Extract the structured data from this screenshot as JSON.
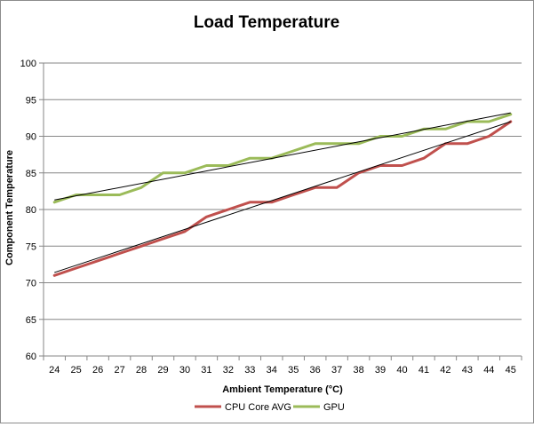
{
  "chart_data": {
    "type": "line",
    "title": "Load Temperature",
    "xlabel": "Ambient Temperature (°C)",
    "ylabel": "Component Temperature",
    "x": [
      24,
      25,
      26,
      27,
      28,
      29,
      30,
      31,
      32,
      33,
      34,
      35,
      36,
      37,
      38,
      39,
      40,
      41,
      42,
      43,
      44,
      45
    ],
    "ylim": [
      60,
      100
    ],
    "yticks": [
      60,
      65,
      70,
      75,
      80,
      85,
      90,
      95,
      100
    ],
    "grid": "horizontal",
    "legend_position": "bottom",
    "series": [
      {
        "name": "CPU Core AVG",
        "color": "#c0504d",
        "values": [
          71,
          72,
          73,
          74,
          75,
          76,
          77,
          79,
          80,
          81,
          81,
          82,
          83,
          83,
          85,
          86,
          86,
          87,
          89,
          89,
          90,
          92
        ],
        "trendline": [
          71.4,
          92.0
        ]
      },
      {
        "name": "GPU",
        "color": "#9bbb59",
        "values": [
          81,
          82,
          82,
          82,
          83,
          85,
          85,
          86,
          86,
          87,
          87,
          88,
          89,
          89,
          89,
          90,
          90,
          91,
          91,
          92,
          92,
          93
        ],
        "trendline": [
          81.3,
          93.2
        ]
      }
    ]
  }
}
